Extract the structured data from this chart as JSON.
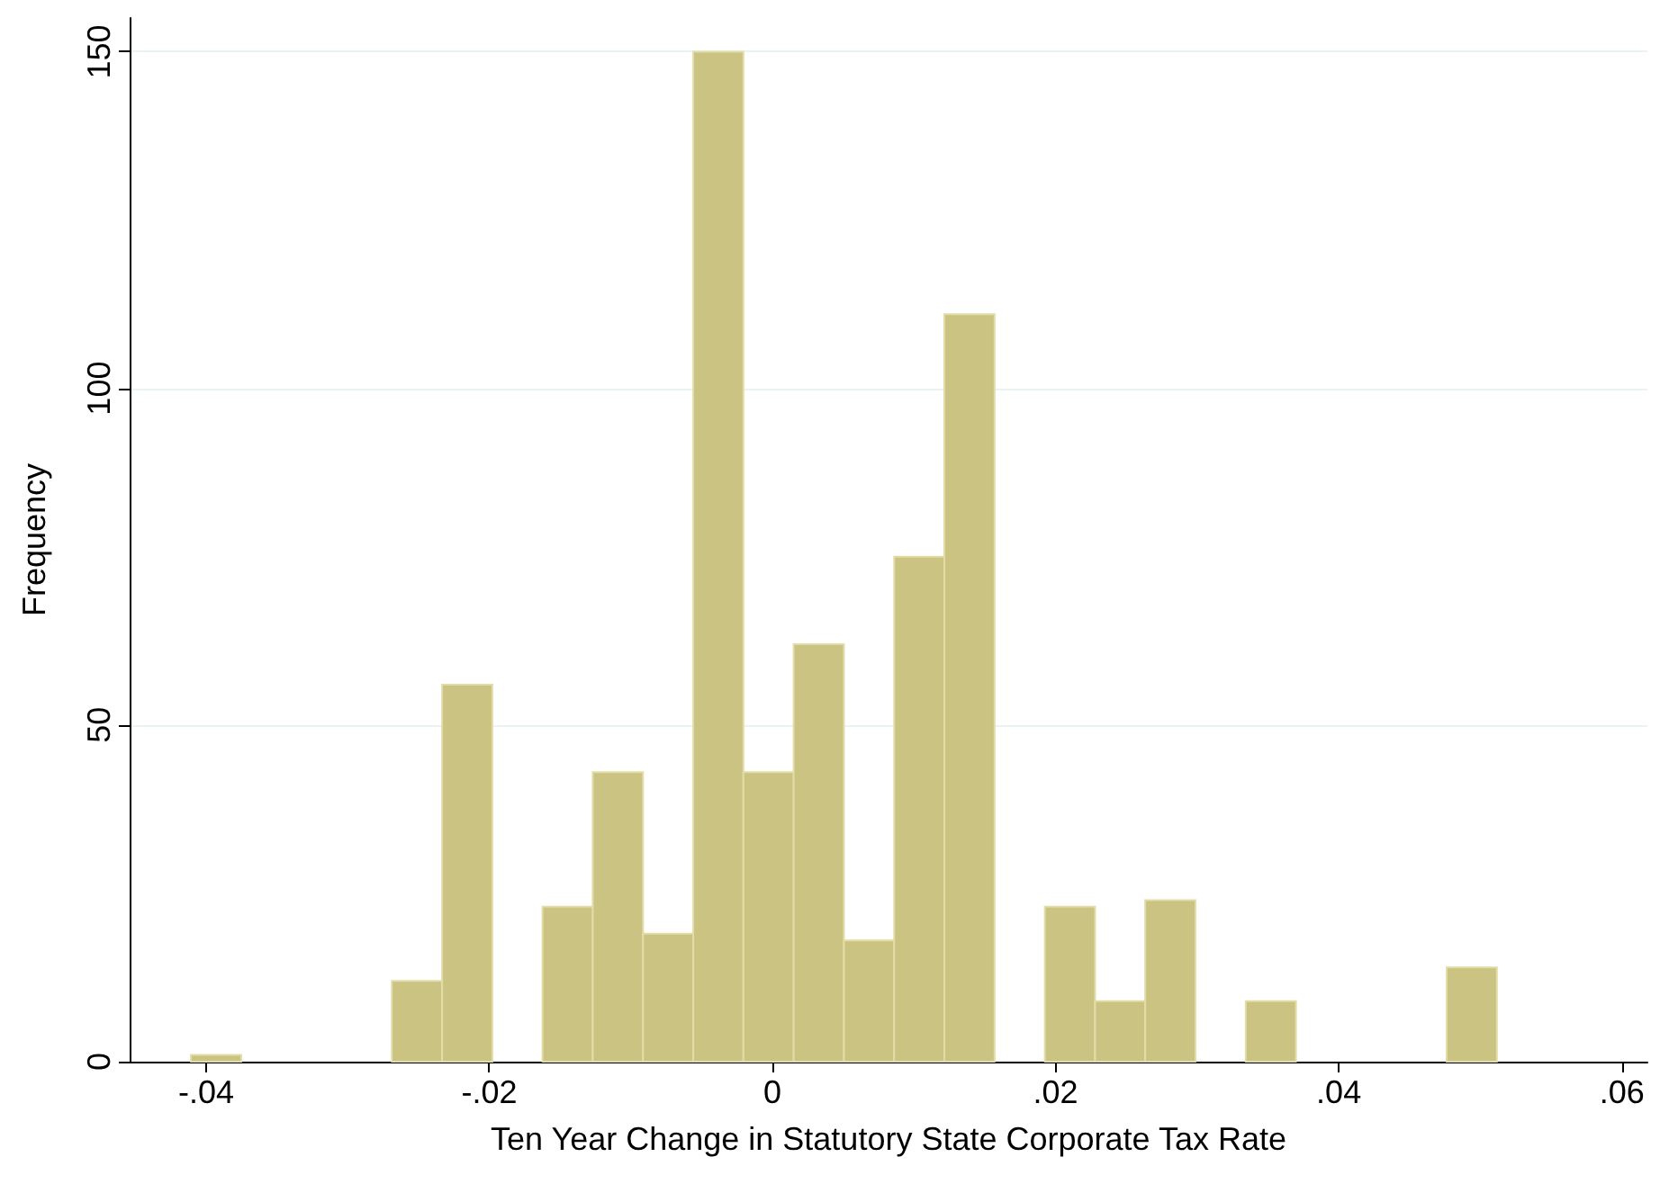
{
  "chart_data": {
    "type": "histogram",
    "xlabel": "Ten Year Change in Statutory State Corporate Tax Rate",
    "ylabel": "Frequency",
    "bins": [
      -0.04107,
      -0.03752,
      -0.03397,
      -0.03043,
      -0.02688,
      -0.02333,
      -0.01978,
      -0.01624,
      -0.01269,
      -0.00914,
      -0.00559,
      -0.00205,
      0.0015,
      0.00505,
      0.0086,
      0.01214,
      0.01569,
      0.01924,
      0.02279,
      0.02633,
      0.02988,
      0.03343,
      0.03698,
      0.04052,
      0.04407,
      0.04762,
      0.05117
    ],
    "values": [
      1,
      0,
      0,
      0,
      12,
      56,
      0,
      23,
      43,
      19,
      150,
      43,
      62,
      18,
      75,
      111,
      0,
      23,
      9,
      24,
      0,
      9,
      0,
      0,
      0,
      14
    ],
    "color": "#cbc382",
    "xlim": [
      -0.0454,
      0.0618
    ],
    "xticks": [
      {
        "value": -0.04,
        "label": "-.04"
      },
      {
        "value": -0.02,
        "label": "-.02"
      },
      0,
      {
        "value": 0.02,
        "label": ".02"
      },
      {
        "value": 0.04,
        "label": ".04"
      },
      {
        "value": 0.06,
        "label": ".06"
      }
    ],
    "ylim": [
      0,
      155
    ],
    "yticks": [
      0,
      50,
      100,
      150
    ],
    "grid": "y",
    "legend": false
  }
}
